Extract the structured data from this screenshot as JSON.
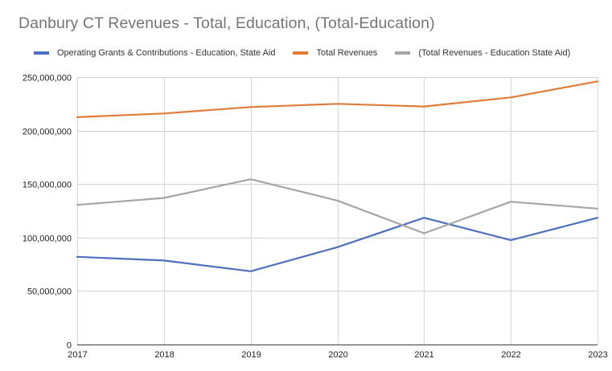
{
  "chart_data": {
    "type": "line",
    "title": "Danbury CT Revenues - Total, Education, (Total-Education)",
    "xlabel": "",
    "ylabel": "",
    "x": [
      "2017",
      "2018",
      "2019",
      "2020",
      "2021",
      "2022",
      "2023"
    ],
    "ylim": [
      0,
      250000000
    ],
    "yticks": [
      0,
      50000000,
      100000000,
      150000000,
      200000000,
      250000000
    ],
    "ytick_labels": [
      "0",
      "50,000,000",
      "100,000,000",
      "150,000,000",
      "200,000,000",
      "250,000,000"
    ],
    "grid": true,
    "legend_position": "top",
    "series": [
      {
        "name": "Operating Grants & Contributions - Education, State Aid",
        "color": "#4f6fbf",
        "values": [
          82000000,
          78500000,
          68500000,
          91000000,
          118500000,
          97500000,
          118500000
        ]
      },
      {
        "name": "Total Revenues",
        "color": "#e07b39",
        "values": [
          212500000,
          216000000,
          222000000,
          225000000,
          222500000,
          231000000,
          246000000
        ]
      },
      {
        "name": "(Total Revenues - Education State Aid)",
        "color": "#a5a5a5",
        "values": [
          130500000,
          137000000,
          154500000,
          134500000,
          104000000,
          133500000,
          127000000
        ]
      }
    ]
  }
}
